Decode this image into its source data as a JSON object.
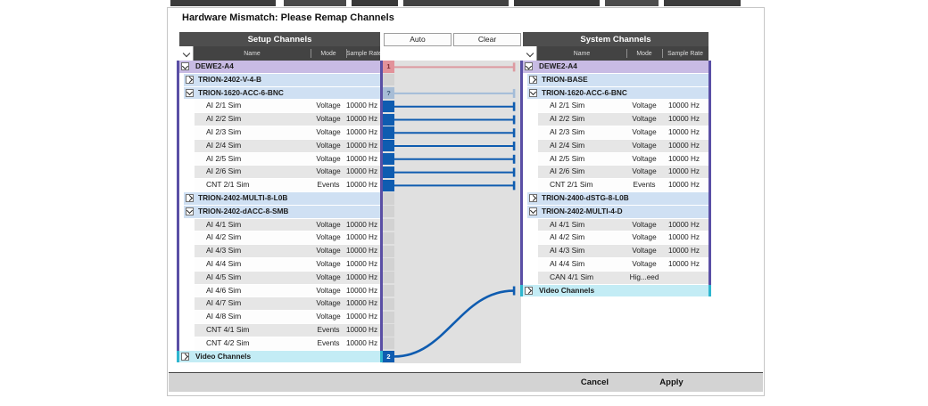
{
  "dialog": {
    "title": "Hardware Mismatch: Please Remap Channels",
    "buttons": {
      "auto": "Auto",
      "clear": "Clear",
      "cancel": "Cancel",
      "apply": "Apply"
    }
  },
  "columns": {
    "name": "Name",
    "mode": "Mode",
    "rate": "Sample Rate"
  },
  "left_panel": {
    "title": "Setup Channels",
    "rows": [
      {
        "label": "DEWE2-A4",
        "kind": "root",
        "expander": "expanded"
      },
      {
        "label": "TRION-2402-V-4-B",
        "kind": "board",
        "expander": "collapsed"
      },
      {
        "label": "TRION-1620-ACC-6-BNC",
        "kind": "board",
        "expander": "expanded"
      },
      {
        "label": "AI 2/1 Sim",
        "mode": "Voltage",
        "rate": "10000 Hz",
        "kind": "channel"
      },
      {
        "label": "AI 2/2 Sim",
        "mode": "Voltage",
        "rate": "10000 Hz",
        "kind": "channel"
      },
      {
        "label": "AI 2/3 Sim",
        "mode": "Voltage",
        "rate": "10000 Hz",
        "kind": "channel"
      },
      {
        "label": "AI 2/4 Sim",
        "mode": "Voltage",
        "rate": "10000 Hz",
        "kind": "channel"
      },
      {
        "label": "AI 2/5 Sim",
        "mode": "Voltage",
        "rate": "10000 Hz",
        "kind": "channel"
      },
      {
        "label": "AI 2/6 Sim",
        "mode": "Voltage",
        "rate": "10000 Hz",
        "kind": "channel"
      },
      {
        "label": "CNT 2/1 Sim",
        "mode": "Events",
        "rate": "10000 Hz",
        "kind": "channel"
      },
      {
        "label": "TRION-2402-MULTI-8-L0B",
        "kind": "board",
        "expander": "collapsed"
      },
      {
        "label": "TRION-2402-dACC-8-SMB",
        "kind": "board",
        "expander": "expanded"
      },
      {
        "label": "AI 4/1 Sim",
        "mode": "Voltage",
        "rate": "10000 Hz",
        "kind": "channel"
      },
      {
        "label": "AI 4/2 Sim",
        "mode": "Voltage",
        "rate": "10000 Hz",
        "kind": "channel"
      },
      {
        "label": "AI 4/3 Sim",
        "mode": "Voltage",
        "rate": "10000 Hz",
        "kind": "channel"
      },
      {
        "label": "AI 4/4 Sim",
        "mode": "Voltage",
        "rate": "10000 Hz",
        "kind": "channel"
      },
      {
        "label": "AI 4/5 Sim",
        "mode": "Voltage",
        "rate": "10000 Hz",
        "kind": "channel"
      },
      {
        "label": "AI 4/6 Sim",
        "mode": "Voltage",
        "rate": "10000 Hz",
        "kind": "channel"
      },
      {
        "label": "AI 4/7 Sim",
        "mode": "Voltage",
        "rate": "10000 Hz",
        "kind": "channel"
      },
      {
        "label": "AI 4/8 Sim",
        "mode": "Voltage",
        "rate": "10000 Hz",
        "kind": "channel"
      },
      {
        "label": "CNT 4/1 Sim",
        "mode": "Events",
        "rate": "10000 Hz",
        "kind": "channel"
      },
      {
        "label": "CNT 4/2 Sim",
        "mode": "Events",
        "rate": "10000 Hz",
        "kind": "channel"
      },
      {
        "label": "Video Channels",
        "kind": "video",
        "expander": "collapsed"
      }
    ]
  },
  "right_panel": {
    "title": "System Channels",
    "rows": [
      {
        "label": "DEWE2-A4",
        "kind": "root",
        "expander": "expanded"
      },
      {
        "label": "TRION-BASE",
        "kind": "board",
        "expander": "collapsed"
      },
      {
        "label": "TRION-1620-ACC-6-BNC",
        "kind": "board",
        "expander": "expanded"
      },
      {
        "label": "AI 2/1 Sim",
        "mode": "Voltage",
        "rate": "10000 Hz",
        "kind": "channel"
      },
      {
        "label": "AI 2/2 Sim",
        "mode": "Voltage",
        "rate": "10000 Hz",
        "kind": "channel"
      },
      {
        "label": "AI 2/3 Sim",
        "mode": "Voltage",
        "rate": "10000 Hz",
        "kind": "channel"
      },
      {
        "label": "AI 2/4 Sim",
        "mode": "Voltage",
        "rate": "10000 Hz",
        "kind": "channel"
      },
      {
        "label": "AI 2/5 Sim",
        "mode": "Voltage",
        "rate": "10000 Hz",
        "kind": "channel"
      },
      {
        "label": "AI 2/6 Sim",
        "mode": "Voltage",
        "rate": "10000 Hz",
        "kind": "channel"
      },
      {
        "label": "CNT 2/1 Sim",
        "mode": "Events",
        "rate": "10000 Hz",
        "kind": "channel"
      },
      {
        "label": "TRION-2400-dSTG-8-L0B",
        "kind": "board",
        "expander": "collapsed"
      },
      {
        "label": "TRION-2402-MULTI-4-D",
        "kind": "board",
        "expander": "expanded"
      },
      {
        "label": "AI 4/1 Sim",
        "mode": "Voltage",
        "rate": "10000 Hz",
        "kind": "channel"
      },
      {
        "label": "AI 4/2 Sim",
        "mode": "Voltage",
        "rate": "10000 Hz",
        "kind": "channel"
      },
      {
        "label": "AI 4/3 Sim",
        "mode": "Voltage",
        "rate": "10000 Hz",
        "kind": "channel"
      },
      {
        "label": "AI 4/4 Sim",
        "mode": "Voltage",
        "rate": "10000 Hz",
        "kind": "channel"
      },
      {
        "label": "CAN 4/1 Sim",
        "mode": "Hig...eed",
        "rate": "",
        "kind": "channel"
      },
      {
        "label": "Video Channels",
        "kind": "video",
        "expander": "collapsed"
      }
    ]
  },
  "mapping": {
    "blocks": [
      {
        "type": "error",
        "label": "1"
      },
      {
        "type": "none"
      },
      {
        "type": "unknown",
        "label": "?"
      },
      {
        "type": "mapped"
      },
      {
        "type": "mapped"
      },
      {
        "type": "mapped"
      },
      {
        "type": "mapped"
      },
      {
        "type": "mapped"
      },
      {
        "type": "mapped"
      },
      {
        "type": "mapped"
      },
      {
        "type": "none"
      },
      {
        "type": "none"
      },
      {
        "type": "none"
      },
      {
        "type": "none"
      },
      {
        "type": "none"
      },
      {
        "type": "none"
      },
      {
        "type": "none"
      },
      {
        "type": "none"
      },
      {
        "type": "none"
      },
      {
        "type": "none"
      },
      {
        "type": "none"
      },
      {
        "type": "none"
      },
      {
        "type": "video",
        "label": "2"
      }
    ],
    "connections": [
      {
        "from": 0,
        "to": 0,
        "type": "error"
      },
      {
        "from": 2,
        "to": 2,
        "type": "unknown"
      },
      {
        "from": 3,
        "to": 3,
        "type": "mapped"
      },
      {
        "from": 4,
        "to": 4,
        "type": "mapped"
      },
      {
        "from": 5,
        "to": 5,
        "type": "mapped"
      },
      {
        "from": 6,
        "to": 6,
        "type": "mapped"
      },
      {
        "from": 7,
        "to": 7,
        "type": "mapped"
      },
      {
        "from": 8,
        "to": 8,
        "type": "mapped"
      },
      {
        "from": 9,
        "to": 9,
        "type": "mapped"
      },
      {
        "from": 22,
        "to": 17,
        "type": "video"
      }
    ],
    "colors": {
      "error": "#dd9aa1",
      "unknown": "#a3bcd8",
      "mapped": "#0f5cb0",
      "video": "#0f5cb0"
    }
  },
  "colors": {
    "header_bar": "#4e4e4e",
    "header_cols": "#434343",
    "row_root": "#c8bbe4",
    "row_board": "#cfe0f3",
    "row_video": "#c3ecf5",
    "row_gray": "#e6e6e6",
    "row_white": "#fdfdfd",
    "border_group": "#5a4fa5",
    "border_video": "#2fb6cf",
    "map_blue": "#0f5cb0",
    "map_red_block": "#e2929a",
    "map_unknown_block": "#a7bdd6",
    "map_none_block": "#d2d2d2",
    "middle_bg": "#e0e0e0"
  }
}
